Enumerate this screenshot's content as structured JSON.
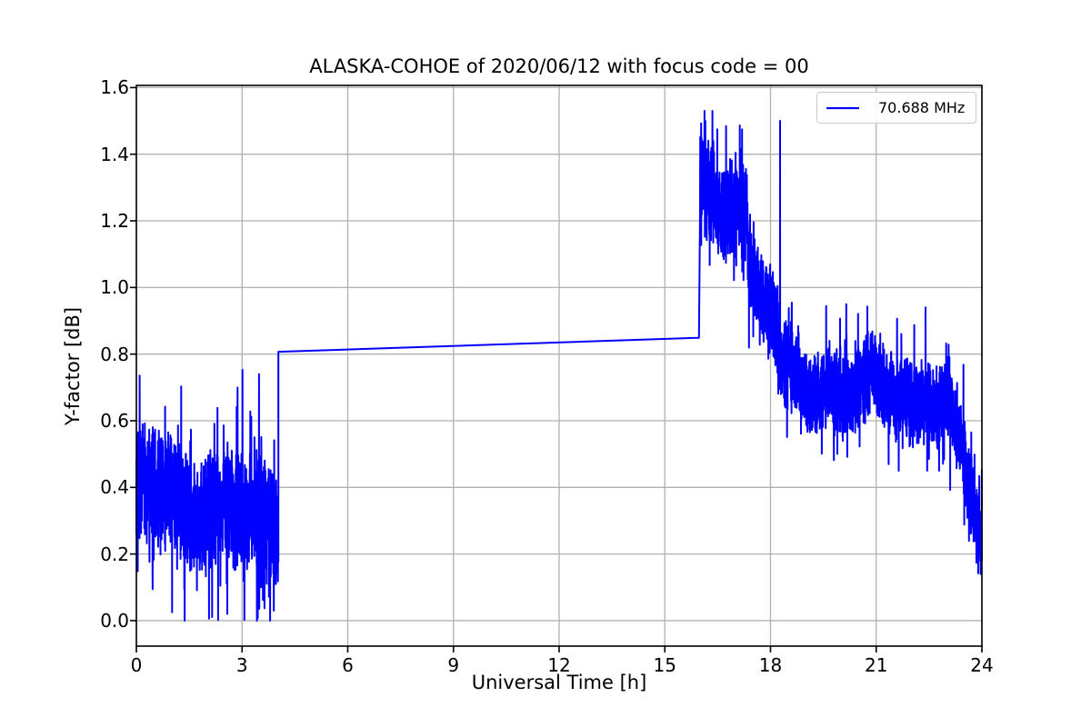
{
  "window": {
    "background": "#ffffff"
  },
  "chart_data": {
    "type": "line",
    "title": "ALASKA-COHOE of 2020/06/12 with focus code = 00",
    "xlabel": "Universal Time [h]",
    "ylabel": "Y-factor [dB]",
    "xlim": [
      0,
      24
    ],
    "ylim": [
      -0.0765,
      1.6065
    ],
    "xticks": {
      "values": [
        0,
        3,
        6,
        9,
        12,
        15,
        18,
        21,
        24
      ],
      "labels": [
        "0",
        "3",
        "6",
        "9",
        "12",
        "15",
        "18",
        "21",
        "24"
      ]
    },
    "yticks": {
      "values": [
        0.0,
        0.2,
        0.4,
        0.6,
        0.8,
        1.0,
        1.2,
        1.4,
        1.6
      ],
      "labels": [
        "0.0",
        "0.2",
        "0.4",
        "0.6",
        "0.8",
        "1.0",
        "1.2",
        "1.4",
        "1.6"
      ]
    },
    "grid": {
      "show": true,
      "color": "#b0b0b0"
    },
    "axes_color": "#000000",
    "background": "#ffffff",
    "legend": {
      "position": "upper-right",
      "entries": [
        {
          "label": "70.688 MHz",
          "color": "#0000ff"
        }
      ]
    },
    "series": [
      {
        "name": "70.688 MHz",
        "color": "#0000ff",
        "line_width": 2,
        "seed": 7,
        "sample_step_h": 0.003,
        "description": "Noisy Y-factor time series: morning noise band 0-4 h around 0.3-0.4 dB, data gap 4-16 h drawn as straight interpolation line rising 0.81 to 0.85 dB, step up at 16 h to a burst plateau ~1.2-1.5 dB until 17.3 h, decay to ~0.8 dB, narrow spike to 1.5 dB at 18.3 h, then band ~0.7 dB slowly declining and dropping to ~0.2 dB by 24 h.",
        "segments": [
          {
            "type": "noise",
            "t0": 0.0,
            "t1": 4.03,
            "mean0": 0.4,
            "mean1": 0.29,
            "amp": 0.13,
            "clip": [
              0.0,
              0.76
            ]
          },
          {
            "type": "line",
            "t0": 4.03,
            "t1": 15.97,
            "v0": 0.807,
            "v1": 0.849
          },
          {
            "type": "noise",
            "t0": 16.0,
            "t1": 17.35,
            "mean0": 1.31,
            "mean1": 1.23,
            "amp": 0.11,
            "clip": [
              1.02,
              1.53
            ]
          },
          {
            "type": "noise",
            "t0": 17.35,
            "t1": 18.22,
            "mean0": 1.12,
            "mean1": 0.84,
            "amp": 0.1,
            "clip": [
              0.6,
              1.3
            ]
          },
          {
            "type": "noise",
            "t0": 18.22,
            "t1": 23.1,
            "mean0": 0.73,
            "mean1": 0.66,
            "amp": 0.1,
            "clip": [
              0.45,
              0.97
            ]
          },
          {
            "type": "noise",
            "t0": 23.1,
            "t1": 24.0,
            "mean0": 0.6,
            "mean1": 0.24,
            "amp": 0.09,
            "clip": [
              0.14,
              0.8
            ]
          }
        ],
        "spikes": [
          [
            1.37,
            0.0
          ],
          [
            2.58,
            0.02
          ],
          [
            3.48,
            0.74
          ],
          [
            3.9,
            0.03
          ],
          [
            16.35,
            1.53
          ],
          [
            16.15,
            1.5
          ],
          [
            18.27,
            1.5
          ],
          [
            20.15,
            0.95
          ],
          [
            24.0,
            0.18
          ]
        ]
      }
    ]
  }
}
